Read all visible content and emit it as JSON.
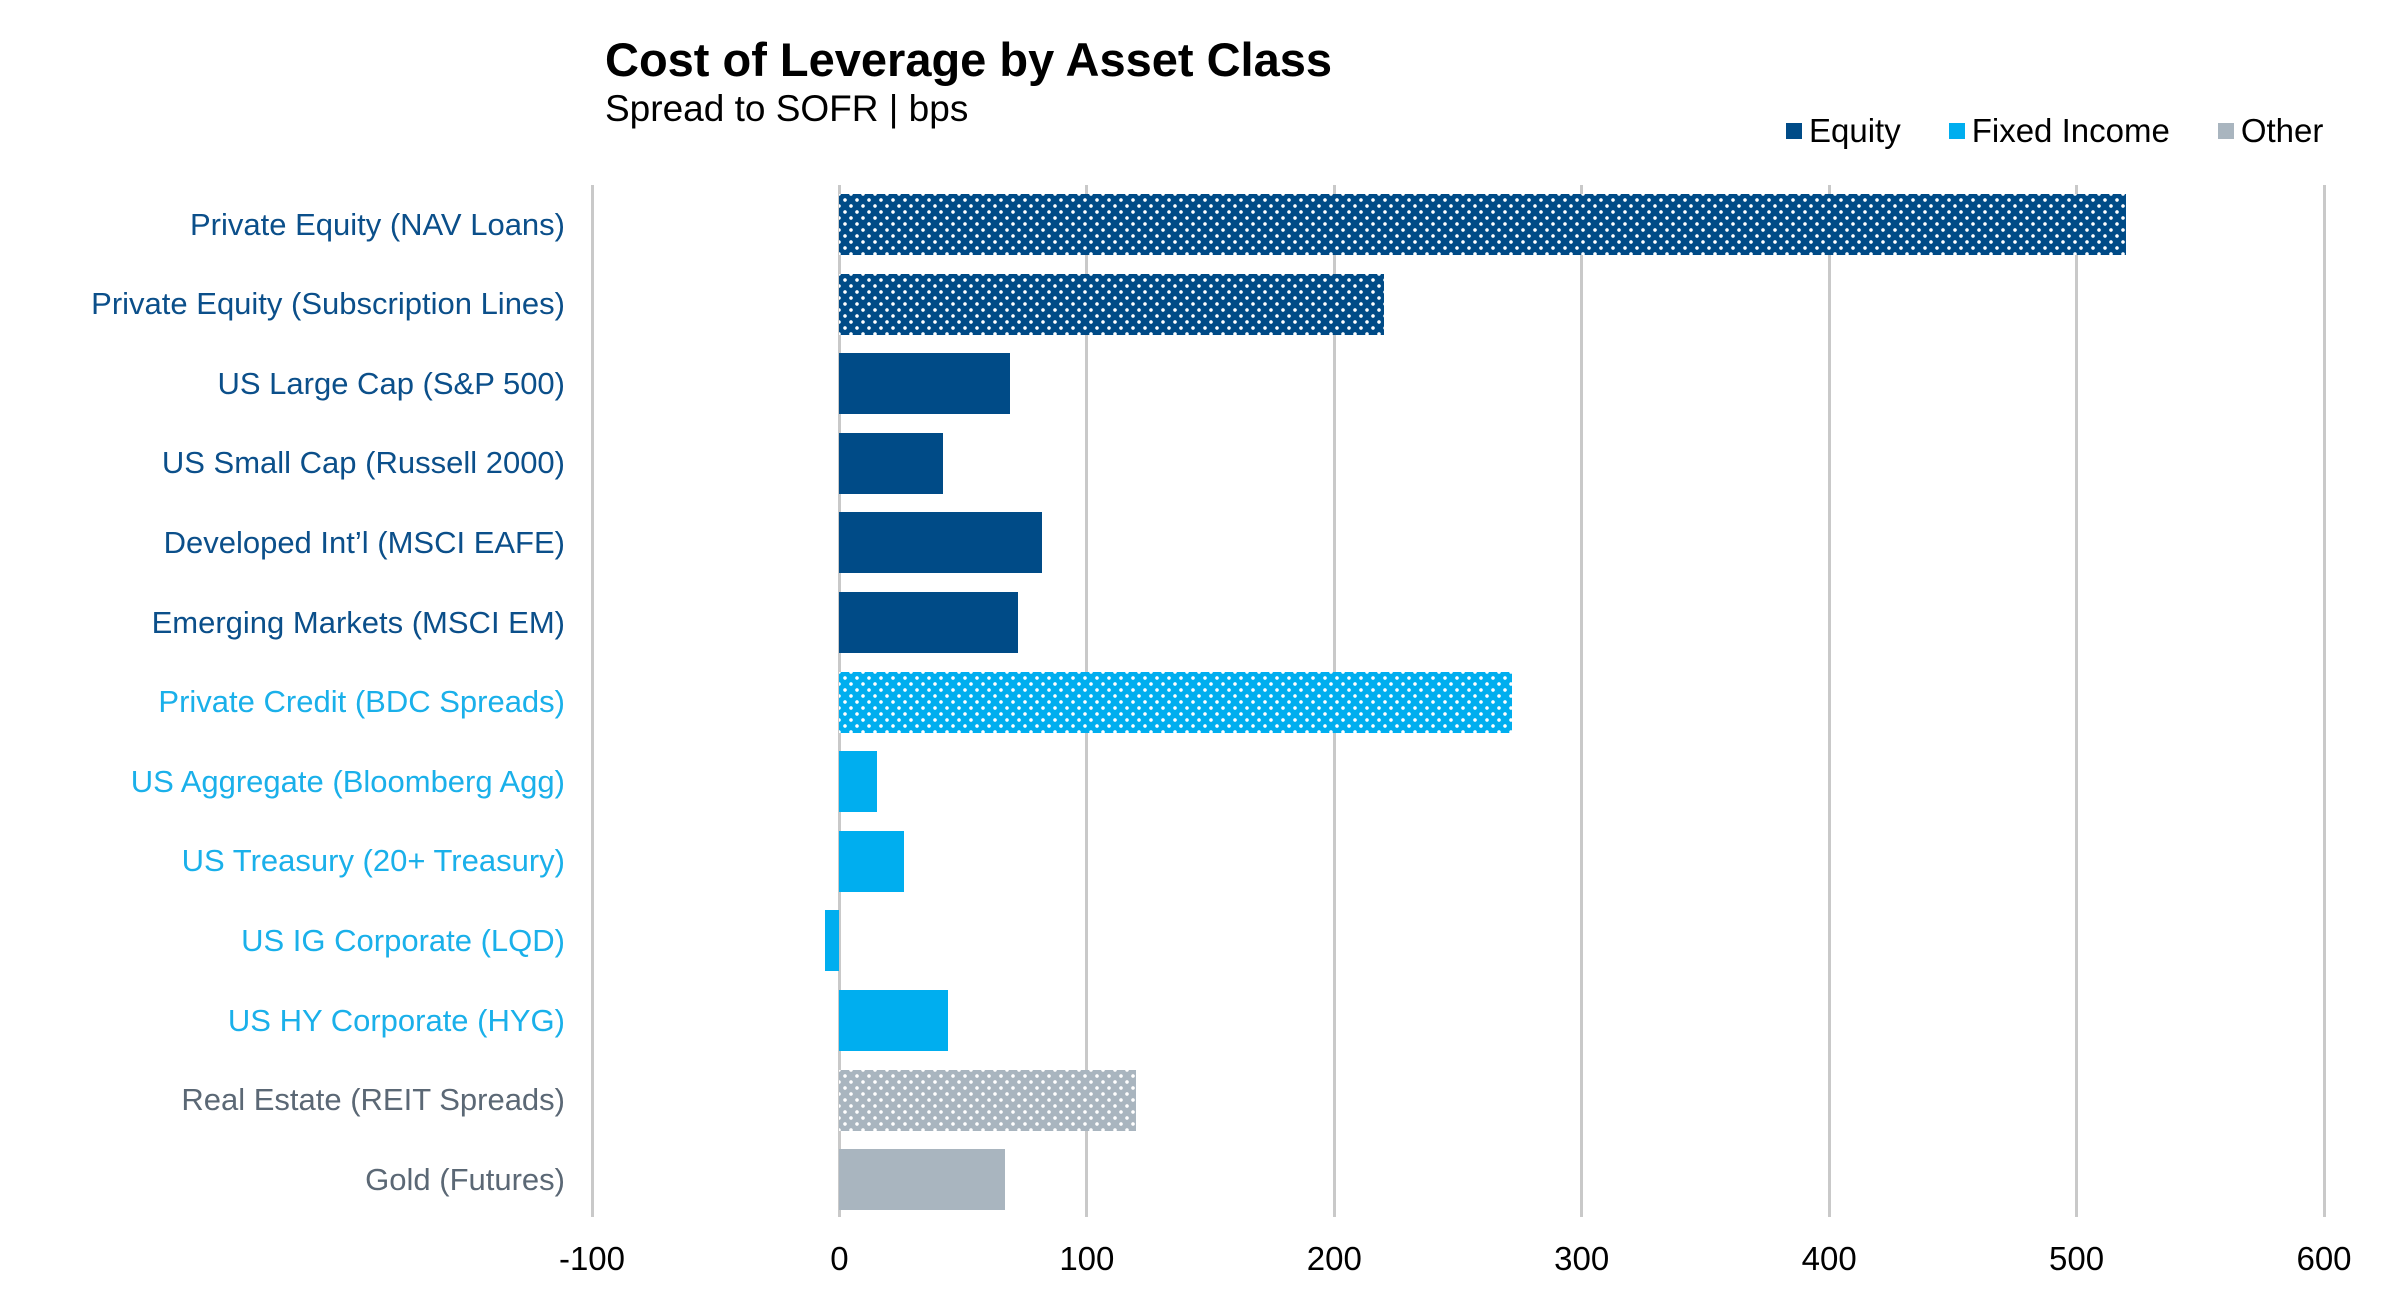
{
  "header": {
    "title": "Cost of Leverage by Asset Class",
    "subtitle": "Spread to SOFR | bps"
  },
  "legend": [
    {
      "label": "Equity",
      "color": "#004b87"
    },
    {
      "label": "Fixed Income",
      "color": "#00aeef"
    },
    {
      "label": "Other",
      "color": "#a9b5bf"
    }
  ],
  "colors": {
    "equity": "#004b87",
    "fixed_income": "#00aeef",
    "other": "#a9b5bf",
    "equity_label": "#0b4f8a",
    "fixed_income_label": "#1ab0ea",
    "other_label": "#5b6875",
    "gridline": "#c9c9c9"
  },
  "axis": {
    "x_ticks": [
      "-100",
      "0",
      "100",
      "200",
      "300",
      "400",
      "500",
      "600"
    ]
  },
  "chart_data": {
    "type": "bar",
    "orientation": "horizontal",
    "title": "Cost of Leverage by Asset Class",
    "subtitle": "Spread to SOFR | bps",
    "xlabel": "",
    "ylabel": "",
    "xlim": [
      -100,
      600
    ],
    "x_ticks": [
      -100,
      0,
      100,
      200,
      300,
      400,
      500,
      600
    ],
    "grid": "vertical",
    "legend_position": "top-right",
    "categories": [
      "Private Equity (NAV Loans)",
      "Private Equity (Subscription Lines)",
      "US Large Cap (S&P 500)",
      "US Small Cap (Russell 2000)",
      "Developed Int’l (MSCI EAFE)",
      "Emerging Markets (MSCI EM)",
      "Private Credit (BDC Spreads)",
      "US Aggregate (Bloomberg Agg)",
      "US Treasury (20+ Treasury)",
      "US IG Corporate (LQD)",
      "US HY Corporate (HYG)",
      "Real Estate (REIT Spreads)",
      "Gold (Futures)"
    ],
    "values": [
      520,
      220,
      69,
      42,
      82,
      72,
      272,
      15,
      26,
      -6,
      44,
      120,
      67
    ],
    "groups": [
      "Equity",
      "Equity",
      "Equity",
      "Equity",
      "Equity",
      "Equity",
      "Fixed Income",
      "Fixed Income",
      "Fixed Income",
      "Fixed Income",
      "Fixed Income",
      "Other",
      "Other"
    ],
    "patterned": [
      true,
      true,
      false,
      false,
      false,
      false,
      true,
      false,
      false,
      false,
      false,
      true,
      false
    ],
    "series": [
      {
        "name": "Equity",
        "values": [
          520,
          220,
          69,
          42,
          82,
          72,
          null,
          null,
          null,
          null,
          null,
          null,
          null
        ]
      },
      {
        "name": "Fixed Income",
        "values": [
          null,
          null,
          null,
          null,
          null,
          null,
          272,
          15,
          26,
          -6,
          44,
          null,
          null
        ]
      },
      {
        "name": "Other",
        "values": [
          null,
          null,
          null,
          null,
          null,
          null,
          null,
          null,
          null,
          null,
          null,
          120,
          67
        ]
      }
    ]
  }
}
